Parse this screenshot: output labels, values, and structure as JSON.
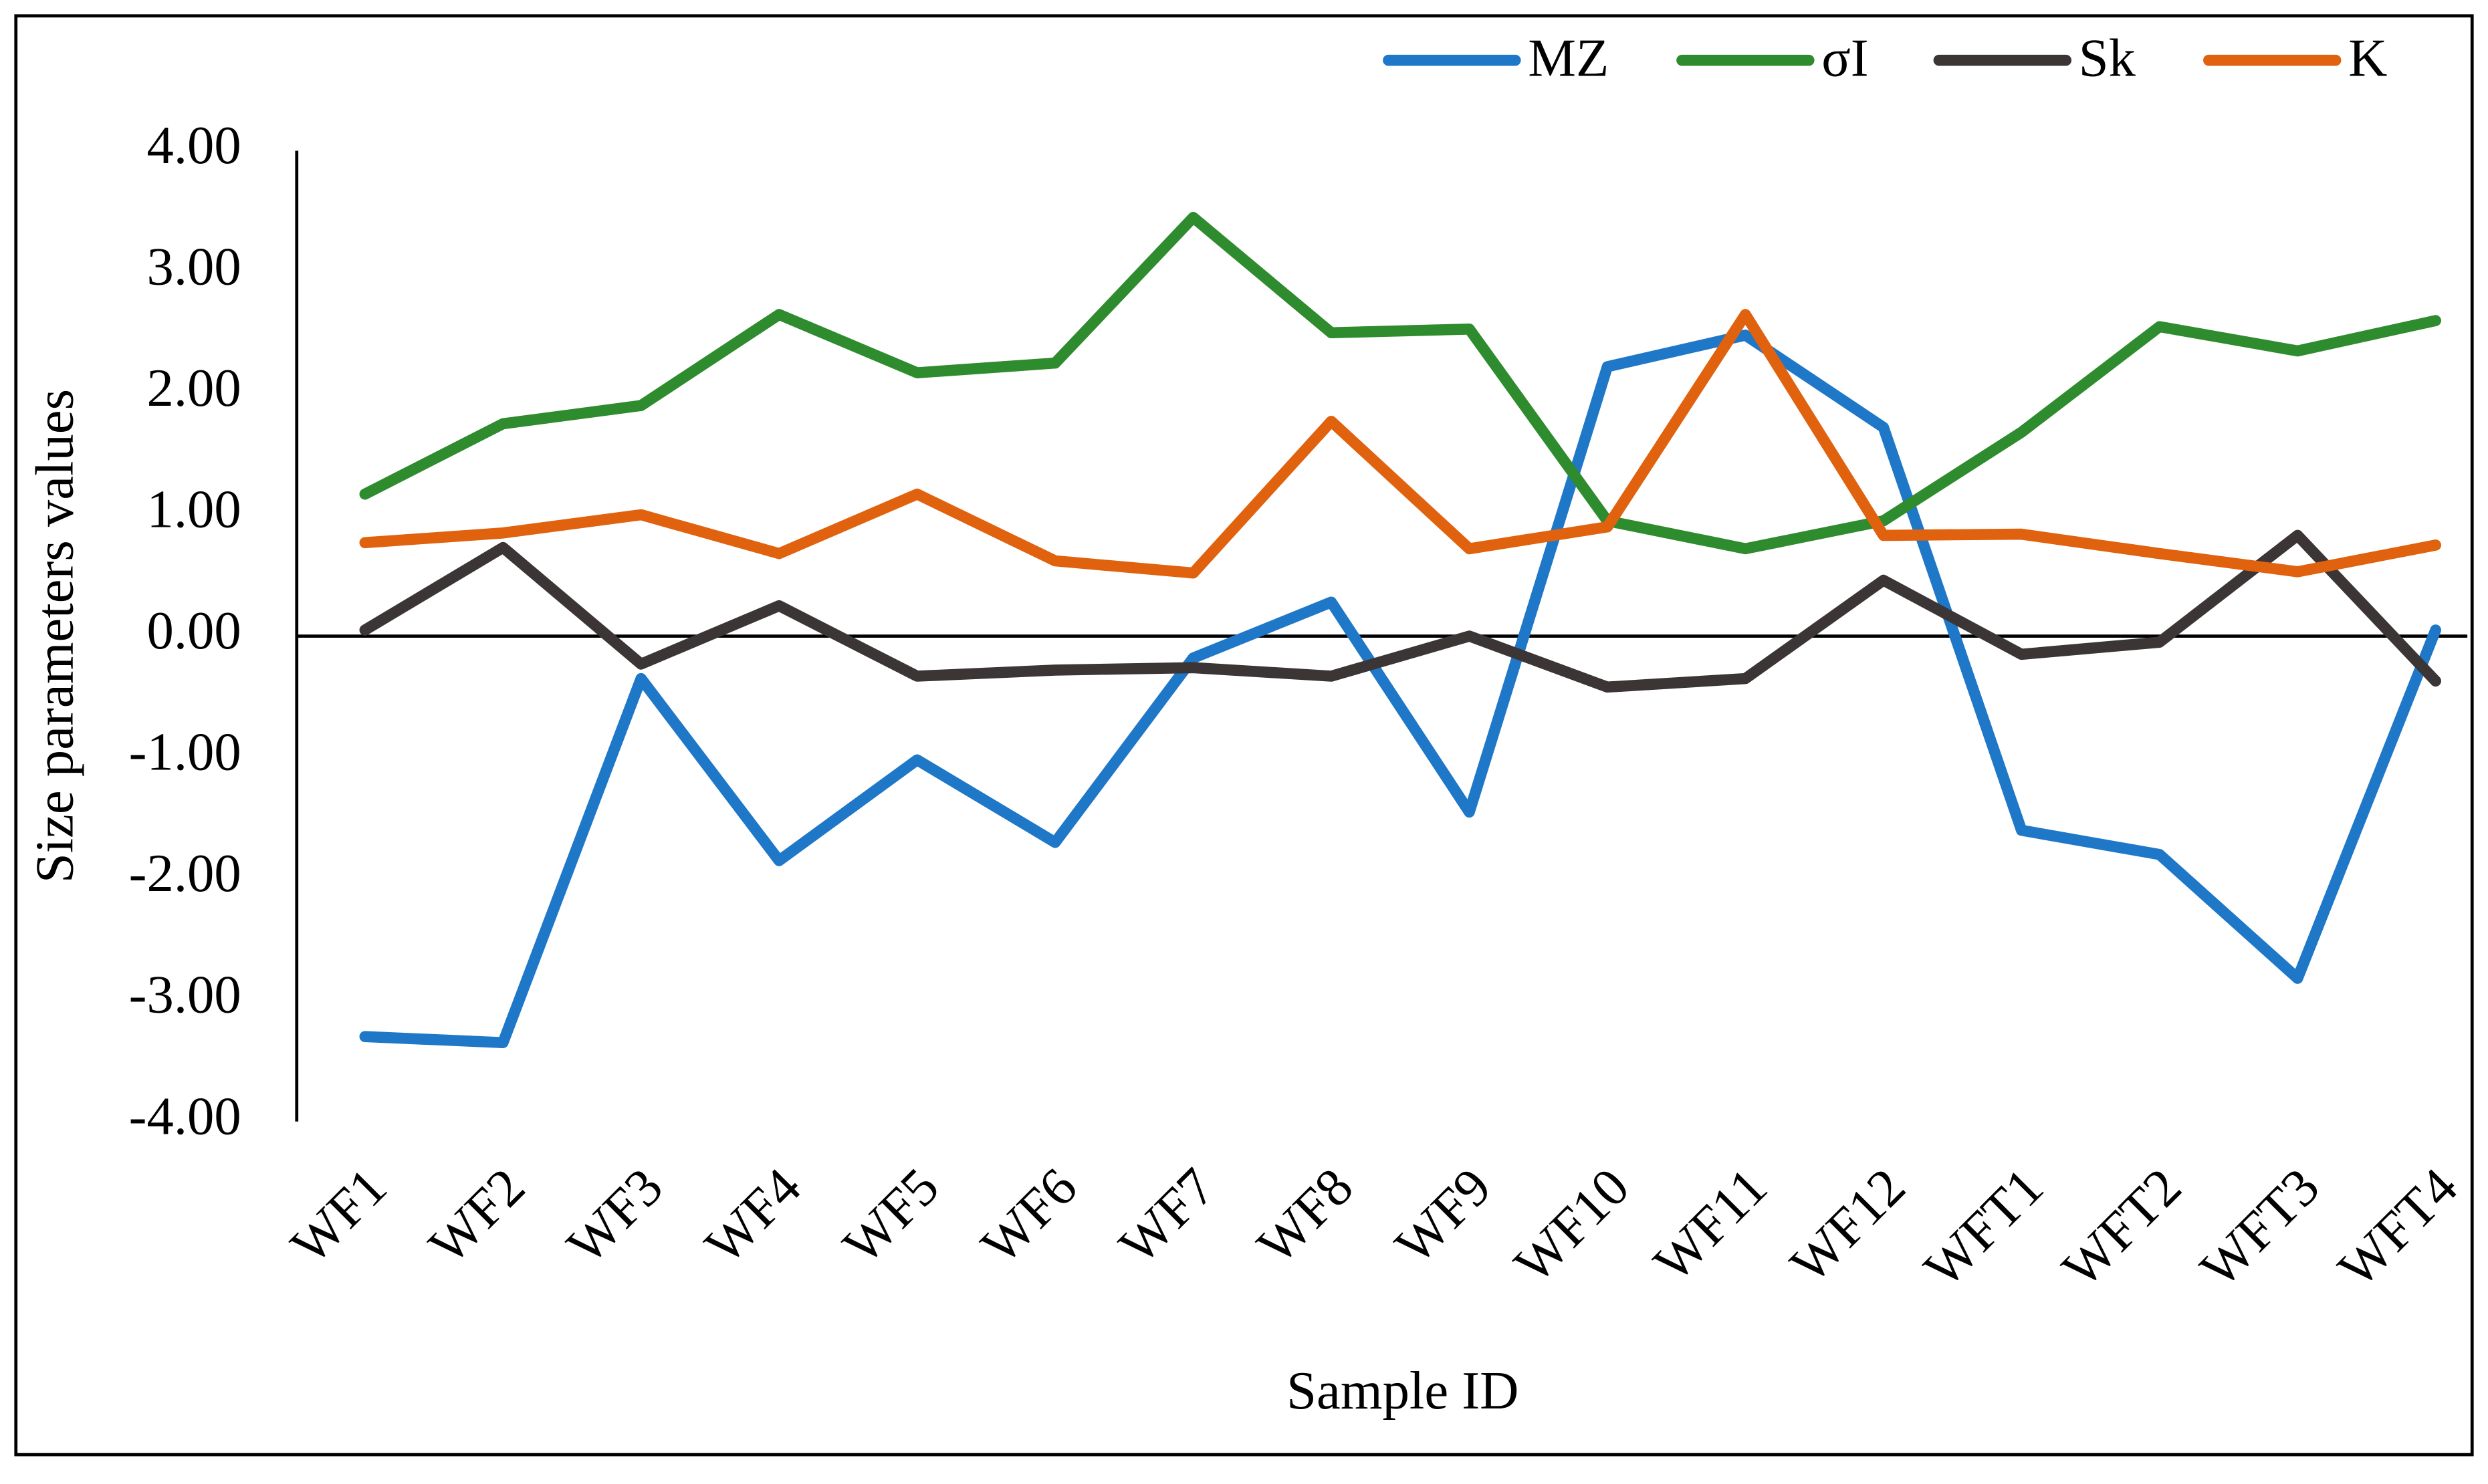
{
  "chart_data": {
    "type": "line",
    "y_label": "Size parameters values",
    "x_label": "Sample ID",
    "categories": [
      "WF1",
      "WF2",
      "WF3",
      "WF4",
      "WF5",
      "WF6",
      "WF7",
      "WF8",
      "WF9",
      "WF10",
      "WF11",
      "WF12",
      "WFT1",
      "WFT2",
      "WFT3",
      "WFT4"
    ],
    "series": [
      {
        "name": "MZ",
        "color": "#1f77c8",
        "values": [
          -3.3,
          -3.35,
          -0.35,
          -1.85,
          -1.02,
          -1.7,
          -0.18,
          0.28,
          -1.45,
          2.22,
          2.48,
          1.72,
          -1.6,
          -1.8,
          -2.82,
          0.05
        ]
      },
      {
        "name": "σI",
        "color": "#2e8b2e",
        "values": [
          1.17,
          1.75,
          1.9,
          2.65,
          2.17,
          2.25,
          3.45,
          2.5,
          2.53,
          0.95,
          0.72,
          0.95,
          1.68,
          2.55,
          2.35,
          2.6
        ]
      },
      {
        "name": "Sk",
        "color": "#3b3536",
        "values": [
          0.05,
          0.73,
          -0.23,
          0.25,
          -0.33,
          -0.28,
          -0.26,
          -0.33,
          0.0,
          -0.42,
          -0.35,
          0.46,
          -0.15,
          -0.05,
          0.83,
          -0.37
        ]
      },
      {
        "name": "K",
        "color": "#e0620e",
        "values": [
          0.77,
          0.85,
          1.0,
          0.68,
          1.17,
          0.62,
          0.52,
          1.77,
          0.72,
          0.9,
          2.65,
          0.83,
          0.84,
          0.68,
          0.53,
          0.75
        ]
      }
    ],
    "ylim": [
      -4,
      4
    ],
    "yticks": [
      {
        "value": 4,
        "label": "4.00"
      },
      {
        "value": 3,
        "label": "3.00"
      },
      {
        "value": 2,
        "label": "2.00"
      },
      {
        "value": 1,
        "label": "1.00"
      },
      {
        "value": 0,
        "label": "0.00"
      },
      {
        "value": -1,
        "label": "-1.00"
      },
      {
        "value": -2,
        "label": "-2.00"
      },
      {
        "value": -3,
        "label": "-3.00"
      },
      {
        "value": -4,
        "label": "-4.00"
      }
    ],
    "grid": false,
    "legend": "top-right"
  }
}
